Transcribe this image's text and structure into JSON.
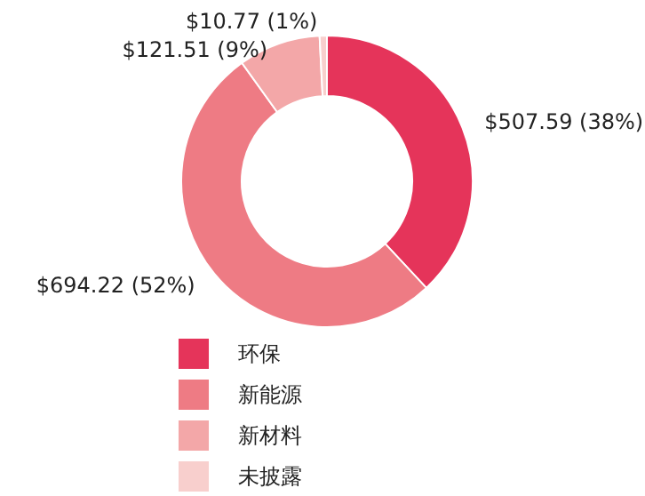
{
  "chart_data": {
    "type": "donut",
    "categories": [
      "环保",
      "新能源",
      "新材料",
      "未披露"
    ],
    "values": [
      507.59,
      694.22,
      121.51,
      10.77
    ],
    "colors": [
      "#e5345a",
      "#ee7b84",
      "#f3a7a8",
      "#f8cfcd"
    ],
    "value_labels": [
      "$507.59 (38%)",
      "$694.22 (52%)",
      "$121.51 (9%)",
      "$10.77 (1%)"
    ],
    "legend": "bottom"
  }
}
